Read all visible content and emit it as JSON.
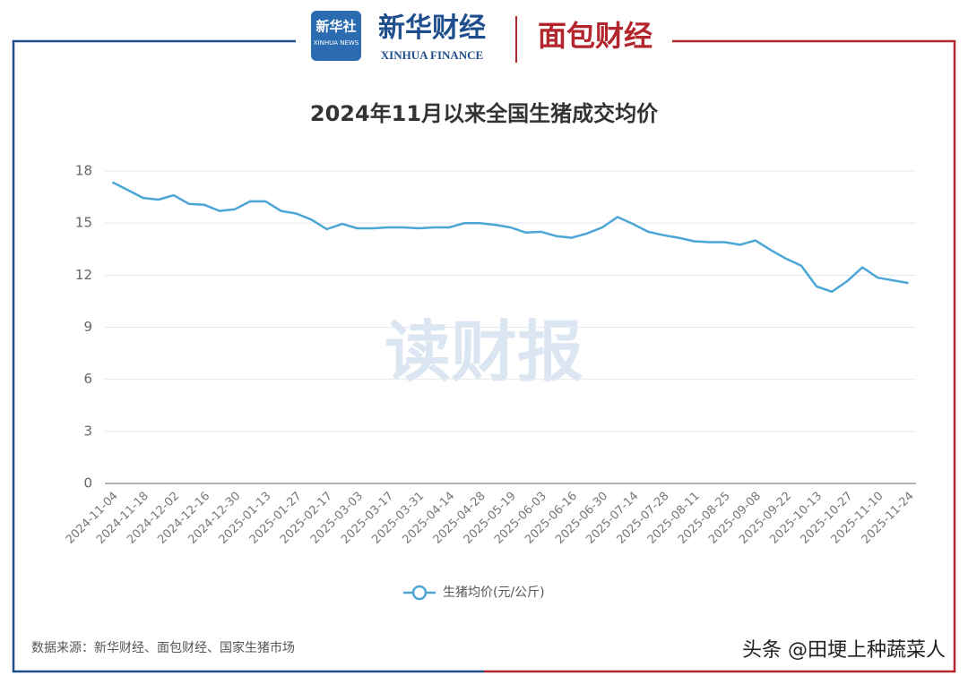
{
  "header": {
    "agency_logo": "新华社",
    "agency_logo_en": "XINHUA NEWS",
    "brand": "新华财经",
    "brand_en": "XINHUA FINANCE",
    "partner": "面包财经"
  },
  "chart_data": {
    "type": "line",
    "title": "2024年11月以来全国生猪成交均价",
    "categories": [
      "2024-11-04",
      null,
      "2024-11-18",
      null,
      "2024-12-02",
      null,
      "2024-12-16",
      null,
      "2024-12-30",
      null,
      "2025-01-13",
      null,
      "2025-01-27",
      null,
      "2025-02-17",
      null,
      "2025-03-03",
      null,
      "2025-03-17",
      null,
      "2025-03-31",
      null,
      "2025-04-14",
      null,
      "2025-04-28",
      null,
      "2025-05-19",
      null,
      "2025-06-03",
      null,
      "2025-06-16",
      null,
      "2025-06-30",
      null,
      "2025-07-14",
      null,
      "2025-07-28",
      null,
      "2025-08-11",
      null,
      "2025-08-25",
      null,
      "2025-09-08",
      null,
      "2025-09-22",
      null,
      "2025-10-13",
      null,
      "2025-10-27",
      null,
      "2025-11-10",
      null,
      "2025-11-24"
    ],
    "series": [
      {
        "name": "生猪均价(元/公斤)",
        "color": "#4ba6d6",
        "values": [
          17.35,
          16.9,
          16.45,
          16.35,
          16.6,
          16.1,
          16.05,
          15.7,
          15.8,
          16.25,
          16.25,
          15.7,
          15.55,
          15.2,
          14.65,
          14.95,
          14.7,
          14.7,
          14.75,
          14.75,
          14.7,
          14.75,
          14.75,
          15.0,
          15.0,
          14.9,
          14.75,
          14.45,
          14.5,
          14.25,
          14.15,
          14.4,
          14.75,
          15.35,
          14.95,
          14.5,
          14.3,
          14.15,
          13.95,
          13.9,
          13.9,
          13.75,
          14.0,
          13.45,
          12.95,
          12.55,
          11.35,
          11.05,
          11.65,
          12.45,
          11.85,
          11.7,
          11.55
        ]
      }
    ],
    "ylim": [
      0,
      18
    ],
    "yticks": [
      0,
      3,
      6,
      9,
      12,
      15,
      18
    ],
    "grid": true,
    "legend": "bottom",
    "watermark": "读财报"
  },
  "footer": {
    "source": "数据来源：新华财经、面包财经、国家生猪市场",
    "credit": "头条 @田埂上种蔬菜人"
  }
}
